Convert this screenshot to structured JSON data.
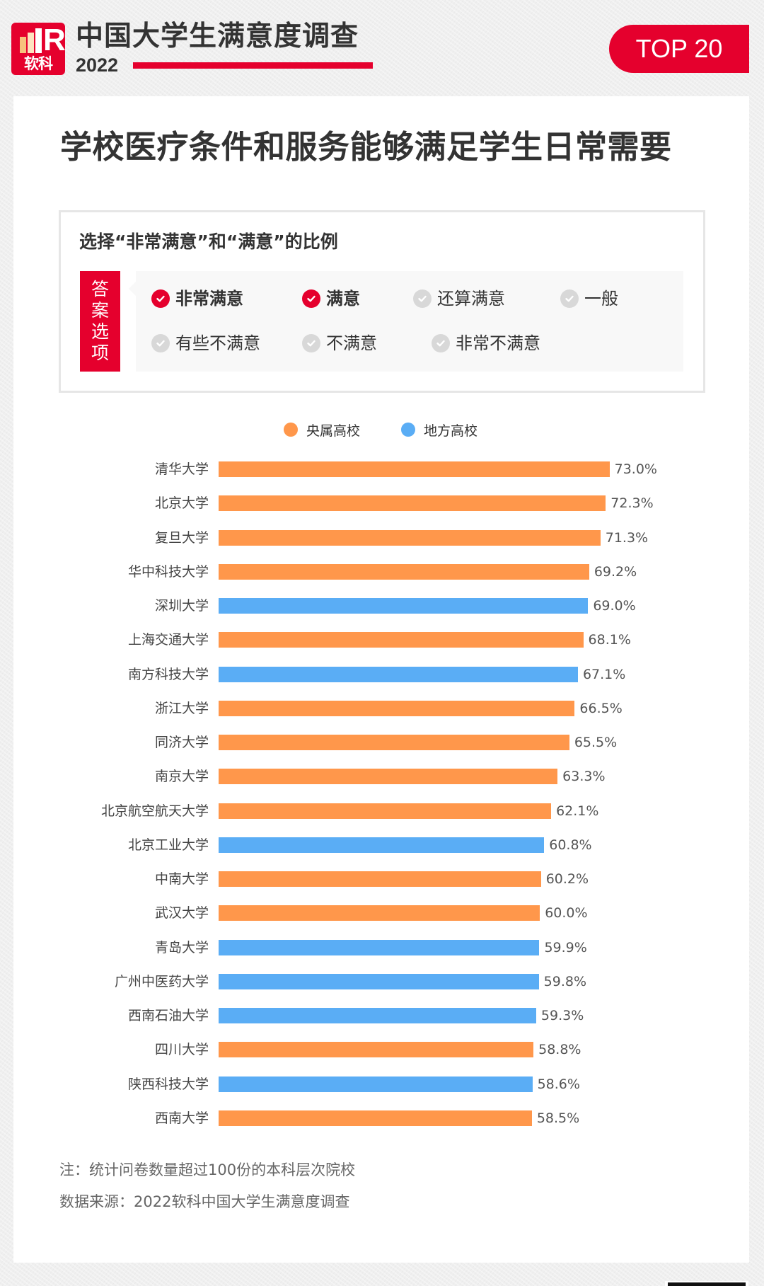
{
  "header": {
    "logo_text": "软科",
    "title": "中国大学生满意度调查",
    "year": "2022",
    "badge": "TOP 20"
  },
  "main_title": "学校医疗条件和服务能够满足学生日常需要",
  "question": {
    "subtitle": "选择“非常满意”和“满意”的比例",
    "answer_label": [
      "答",
      "案",
      "选",
      "项"
    ],
    "options": [
      {
        "label": "非常满意",
        "selected": true
      },
      {
        "label": "满意",
        "selected": true
      },
      {
        "label": "还算满意",
        "selected": false
      },
      {
        "label": "一般",
        "selected": false
      },
      {
        "label": "有些不满意",
        "selected": false
      },
      {
        "label": "不满意",
        "selected": false
      },
      {
        "label": "非常不满意",
        "selected": false
      }
    ]
  },
  "colors": {
    "brand_red": "#e5002d",
    "central": "#ff974b",
    "local": "#5aadf5"
  },
  "chart_data": {
    "type": "bar",
    "orientation": "horizontal",
    "title": "学校医疗条件和服务能够满足学生日常需要",
    "subtitle": "选择“非常满意”和“满意”的比例",
    "xlabel": "",
    "ylabel": "",
    "unit": "%",
    "xlim": [
      0,
      73
    ],
    "grid": false,
    "legend_position": "top",
    "legend": [
      {
        "key": "central",
        "label": "央属高校",
        "color": "#ff974b"
      },
      {
        "key": "local",
        "label": "地方高校",
        "color": "#5aadf5"
      }
    ],
    "categories": [
      "清华大学",
      "北京大学",
      "复旦大学",
      "华中科技大学",
      "深圳大学",
      "上海交通大学",
      "南方科技大学",
      "浙江大学",
      "同济大学",
      "南京大学",
      "北京航空航天大学",
      "北京工业大学",
      "中南大学",
      "武汉大学",
      "青岛大学",
      "广州中医药大学",
      "西南石油大学",
      "四川大学",
      "陕西科技大学",
      "西南大学"
    ],
    "values": [
      73.0,
      72.3,
      71.3,
      69.2,
      69.0,
      68.1,
      67.1,
      66.5,
      65.5,
      63.3,
      62.1,
      60.8,
      60.2,
      60.0,
      59.9,
      59.8,
      59.3,
      58.8,
      58.6,
      58.5
    ],
    "value_labels": [
      "73.0%",
      "72.3%",
      "71.3%",
      "69.2%",
      "69.0%",
      "68.1%",
      "67.1%",
      "66.5%",
      "65.5%",
      "63.3%",
      "62.1%",
      "60.8%",
      "60.2%",
      "60.0%",
      "59.9%",
      "59.8%",
      "59.3%",
      "58.8%",
      "58.6%",
      "58.5%"
    ],
    "groups": [
      "central",
      "central",
      "central",
      "central",
      "local",
      "central",
      "local",
      "central",
      "central",
      "central",
      "central",
      "local",
      "central",
      "central",
      "local",
      "local",
      "local",
      "central",
      "local",
      "central"
    ]
  },
  "notes": {
    "note": "注：统计问卷数量超过100份的本科层次院校",
    "source": "数据来源：2022软科中国大学生满意度调查"
  }
}
